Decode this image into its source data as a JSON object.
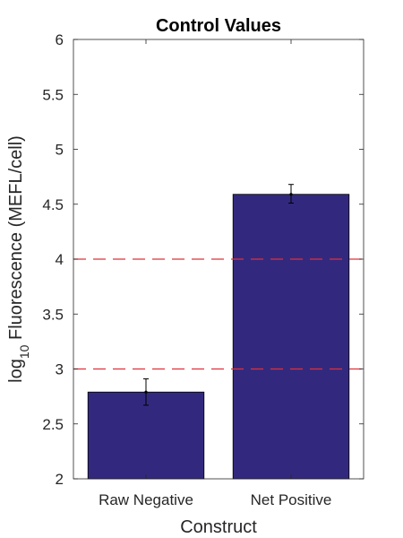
{
  "chart_data": {
    "type": "bar",
    "title": "Control Values",
    "xlabel": "Construct",
    "ylabel_prefix": "log",
    "ylabel_subscript": "10",
    "ylabel_suffix": " Fluorescence (MEFL/cell)",
    "categories": [
      "Raw Negative",
      "Net Positive"
    ],
    "values": [
      2.79,
      4.59
    ],
    "error_bars": [
      {
        "low": 2.67,
        "high": 2.91
      },
      {
        "low": 4.51,
        "high": 4.68
      }
    ],
    "ylim": [
      2,
      6
    ],
    "yticks": [
      2,
      2.5,
      3,
      3.5,
      4,
      4.5,
      5,
      5.5,
      6
    ],
    "ytick_labels": [
      "2",
      "2.5",
      "3",
      "3.5",
      "4",
      "4.5",
      "5",
      "5.5",
      "6"
    ],
    "reference_lines": [
      3,
      4
    ],
    "bar_color": "#32297f",
    "reference_line_color": "#e0303a",
    "error_bar_color": "#000000",
    "grid": false
  }
}
